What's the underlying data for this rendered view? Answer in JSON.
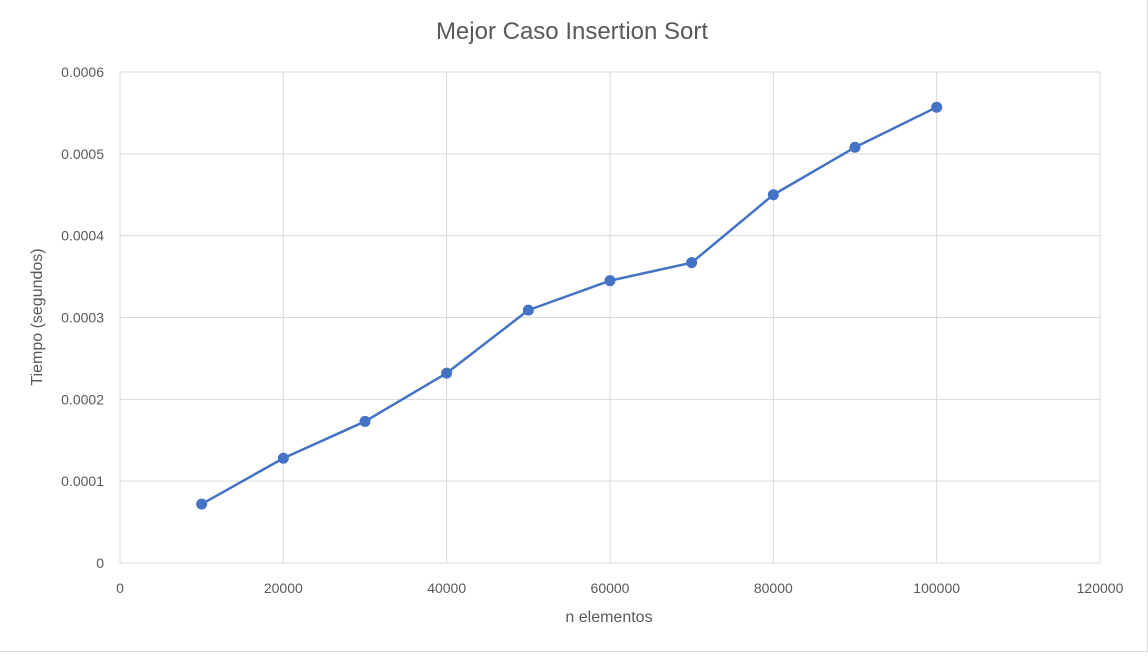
{
  "chart_data": {
    "type": "line",
    "title": "Mejor Caso Insertion Sort",
    "xlabel": "n elementos",
    "ylabel": "Tiempo (segundos)",
    "xlim": [
      0,
      120000
    ],
    "ylim": [
      0,
      0.0006
    ],
    "xticks": [
      "0",
      "20000",
      "40000",
      "60000",
      "80000",
      "100000",
      "120000"
    ],
    "yticks": [
      "0",
      "0.0001",
      "0.0002",
      "0.0003",
      "0.0004",
      "0.0005",
      "0.0006"
    ],
    "grid": true,
    "legend": "none",
    "series": [
      {
        "color": "#4472C4",
        "x": [
          10000,
          20000,
          30000,
          40000,
          50000,
          60000,
          70000,
          80000,
          90000,
          100000
        ],
        "y": [
          7.2e-05,
          0.000128,
          0.000173,
          0.000232,
          0.000309,
          0.000345,
          0.000367,
          0.00045,
          0.000508,
          0.000557
        ]
      }
    ]
  }
}
